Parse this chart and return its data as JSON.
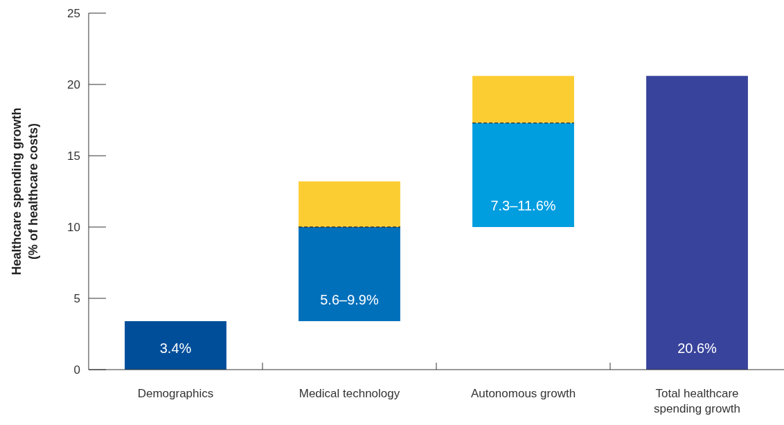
{
  "chart_data": {
    "type": "bar",
    "ylabel": "Healthcare spending growth\n(% of healthcare costs)",
    "categories": [
      "Demographics",
      "Medical technology",
      "Autonomous growth",
      "Total healthcare spending growth"
    ],
    "series": [
      {
        "colors": [
          "#004e9a",
          "#0070bb",
          "#009ddf",
          "#38439b"
        ],
        "base": [
          0,
          3.4,
          10,
          0
        ],
        "values": [
          3.4,
          6.6,
          7.3,
          20.6
        ],
        "value_labels": [
          "3.4%",
          null,
          null,
          "20.6%"
        ]
      },
      {
        "color": "#fccd33",
        "base": [
          null,
          10,
          17.3,
          null
        ],
        "values": [
          null,
          3.2,
          3.3,
          null
        ],
        "line_style": "dashed"
      }
    ],
    "annotations": [
      {
        "text": "5.6–9.9%",
        "x": "Medical technology",
        "y": 3.4
      },
      {
        "text": "7.3–11.6%",
        "x": "Autonomous growth",
        "y": 10
      }
    ],
    "ylim": [
      0,
      25
    ],
    "yticks": [
      0,
      5,
      10,
      15,
      20,
      25
    ],
    "grid": false
  }
}
